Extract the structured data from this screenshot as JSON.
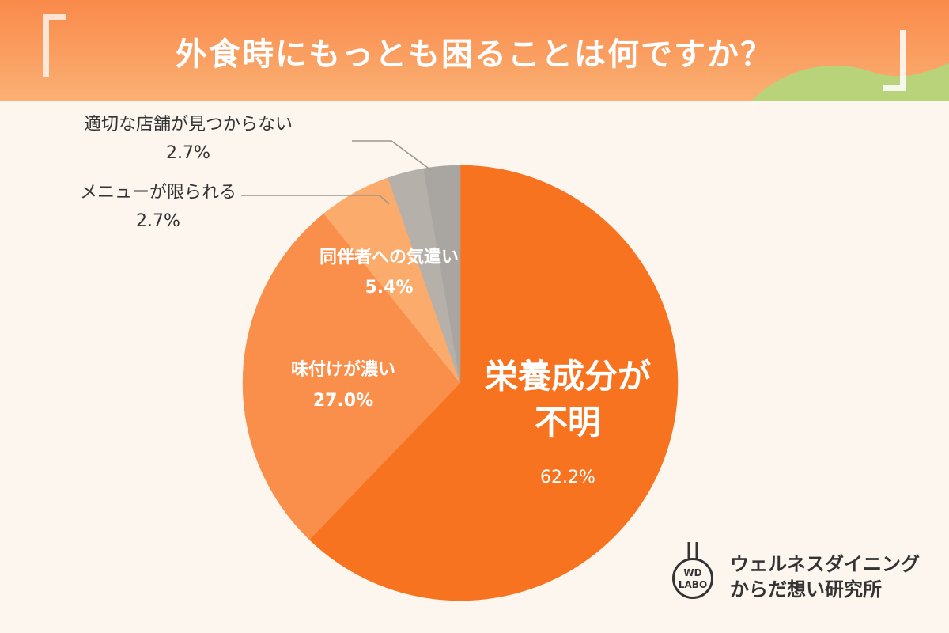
{
  "title": "外食時にもっとも困ることは何ですか？",
  "chart_data": {
    "type": "pie",
    "title": "外食時にもっとも困ることは何ですか？",
    "slices": [
      {
        "label": "栄養成分が不明",
        "label_lines": [
          "栄養成分が",
          "不明"
        ],
        "value": 62.2,
        "value_text": "62.2%",
        "color": "#f7731f"
      },
      {
        "label": "味付けが濃い",
        "label_lines": [
          "味付けが濃い"
        ],
        "value": 27.0,
        "value_text": "27.0%",
        "color": "#fa8f4b"
      },
      {
        "label": "同伴者への気遣い",
        "label_lines": [
          "同伴者への気遣い"
        ],
        "value": 5.4,
        "value_text": "5.4%",
        "color": "#fbac6c"
      },
      {
        "label": "メニューが限られる",
        "label_lines": [
          "メニューが限られる"
        ],
        "value": 2.7,
        "value_text": "2.7%",
        "color": "#b5b0aa"
      },
      {
        "label": "適切な店舗が見つからない",
        "label_lines": [
          "適切な店舗が見つからない"
        ],
        "value": 2.7,
        "value_text": "2.7%",
        "color": "#a9a5a1"
      }
    ]
  },
  "brand": {
    "logo_line1": "WD",
    "logo_line2": "LABO",
    "name_line1": "ウェルネスダイニング",
    "name_line2": "からだ想い研究所"
  },
  "colors": {
    "header_top": "#f98a4a",
    "header_bottom": "#fbb074",
    "hill": "#b9d37a",
    "background": "#fdf6ef"
  }
}
